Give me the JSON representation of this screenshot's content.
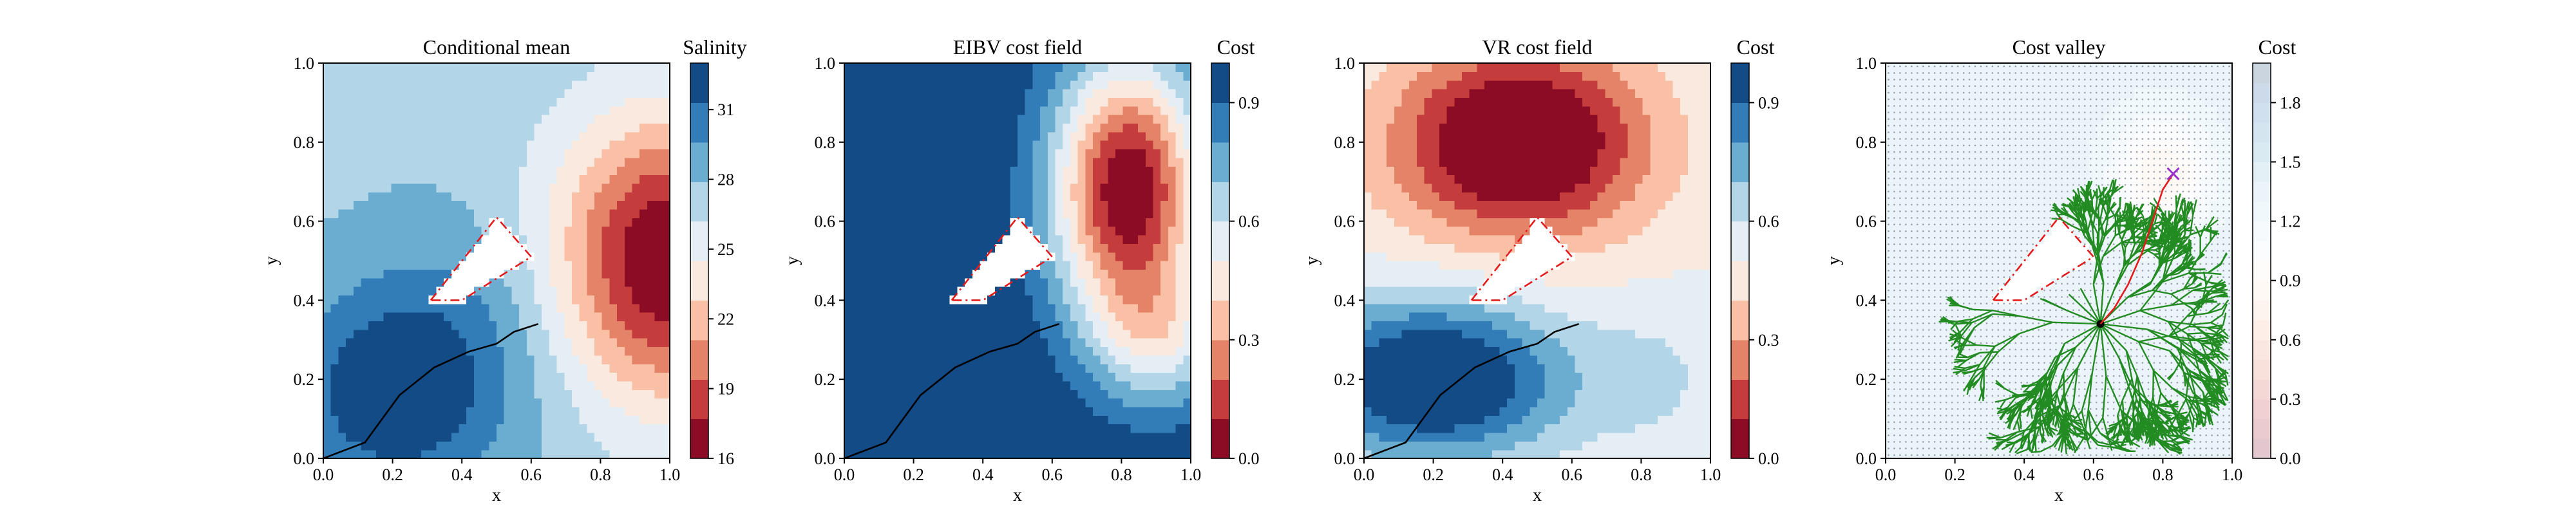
{
  "chart_data": [
    {
      "type": "heatmap",
      "title": "Conditional mean",
      "xlabel": "x",
      "ylabel": "y",
      "xlim": [
        0.0,
        1.0
      ],
      "ylim": [
        0.0,
        1.0
      ],
      "xticks": [
        "0.0",
        "0.2",
        "0.4",
        "0.6",
        "0.8",
        "1.0"
      ],
      "yticks": [
        "0.0",
        "0.2",
        "0.4",
        "0.6",
        "0.8",
        "1.0"
      ],
      "colorbar": {
        "label": "Salinity",
        "range": [
          16,
          33
        ],
        "ticks": [
          "16",
          "19",
          "22",
          "25",
          "28",
          "31"
        ],
        "tick_values": [
          16,
          19,
          22,
          25,
          28,
          31
        ],
        "colormap": "RdBu",
        "levels": 10
      },
      "field": {
        "base": 27.5,
        "blobs": [
          {
            "x": 1.0,
            "y": 0.5,
            "amp": -12,
            "rx": 0.34,
            "ry": 0.36
          },
          {
            "x": 0.2,
            "y": 0.16,
            "amp": 5,
            "rx": 0.3,
            "ry": 0.26
          },
          {
            "x": 0.45,
            "y": 0.35,
            "amp": 2,
            "rx": 0.35,
            "ry": 0.3
          }
        ]
      },
      "obstacle": [
        [
          0.31,
          0.4
        ],
        [
          0.5,
          0.61
        ],
        [
          0.6,
          0.51
        ],
        [
          0.4,
          0.4
        ]
      ],
      "path": [
        [
          0.0,
          0.0
        ],
        [
          0.12,
          0.04
        ],
        [
          0.22,
          0.16
        ],
        [
          0.32,
          0.23
        ],
        [
          0.42,
          0.27
        ],
        [
          0.5,
          0.29
        ],
        [
          0.55,
          0.32
        ],
        [
          0.62,
          0.34
        ]
      ],
      "path_color": "#000000"
    },
    {
      "type": "heatmap",
      "title": "EIBV cost field",
      "xlabel": "x",
      "ylabel": "y",
      "xlim": [
        0.0,
        1.0
      ],
      "ylim": [
        0.0,
        1.0
      ],
      "xticks": [
        "0.0",
        "0.2",
        "0.4",
        "0.6",
        "0.8",
        "1.0"
      ],
      "yticks": [
        "0.0",
        "0.2",
        "0.4",
        "0.6",
        "0.8",
        "1.0"
      ],
      "colorbar": {
        "label": "Cost",
        "range": [
          0.0,
          1.0
        ],
        "ticks": [
          "0.0",
          "0.3",
          "0.6",
          "0.9"
        ],
        "tick_values": [
          0.0,
          0.3,
          0.6,
          0.9
        ],
        "colormap": "RdBu",
        "levels": 10
      },
      "field": {
        "base": 1.0,
        "blobs": [
          {
            "x": 0.82,
            "y": 0.68,
            "amp": -1.0,
            "rx": 0.22,
            "ry": 0.34
          },
          {
            "x": 0.92,
            "y": 0.3,
            "amp": -0.35,
            "rx": 0.2,
            "ry": 0.18
          }
        ]
      },
      "obstacle": [
        [
          0.31,
          0.4
        ],
        [
          0.5,
          0.61
        ],
        [
          0.6,
          0.51
        ],
        [
          0.4,
          0.4
        ]
      ],
      "path": [
        [
          0.0,
          0.0
        ],
        [
          0.12,
          0.04
        ],
        [
          0.22,
          0.16
        ],
        [
          0.32,
          0.23
        ],
        [
          0.42,
          0.27
        ],
        [
          0.5,
          0.29
        ],
        [
          0.55,
          0.32
        ],
        [
          0.62,
          0.34
        ]
      ],
      "path_color": "#000000"
    },
    {
      "type": "heatmap",
      "title": "VR cost field",
      "xlabel": "x",
      "ylabel": "y",
      "xlim": [
        0.0,
        1.0
      ],
      "ylim": [
        0.0,
        1.0
      ],
      "xticks": [
        "0.0",
        "0.2",
        "0.4",
        "0.6",
        "0.8",
        "1.0"
      ],
      "yticks": [
        "0.0",
        "0.2",
        "0.4",
        "0.6",
        "0.8",
        "1.0"
      ],
      "colorbar": {
        "label": "Cost",
        "range": [
          0.0,
          1.0
        ],
        "ticks": [
          "0.0",
          "0.3",
          "0.6",
          "0.9"
        ],
        "tick_values": [
          0.0,
          0.3,
          0.6,
          0.9
        ],
        "colormap": "RdBu",
        "levels": 10
      },
      "field": {
        "base": 0.5,
        "blobs": [
          {
            "x": 0.45,
            "y": 0.8,
            "amp": -0.62,
            "rx": 0.36,
            "ry": 0.24
          },
          {
            "x": 0.2,
            "y": 0.2,
            "amp": 0.6,
            "rx": 0.38,
            "ry": 0.2
          },
          {
            "x": 0.85,
            "y": 0.2,
            "amp": 0.1,
            "rx": 0.2,
            "ry": 0.2
          }
        ]
      },
      "obstacle": [
        [
          0.31,
          0.4
        ],
        [
          0.5,
          0.61
        ],
        [
          0.6,
          0.51
        ],
        [
          0.4,
          0.4
        ]
      ],
      "path": [
        [
          0.0,
          0.0
        ],
        [
          0.12,
          0.04
        ],
        [
          0.22,
          0.16
        ],
        [
          0.32,
          0.23
        ],
        [
          0.42,
          0.27
        ],
        [
          0.5,
          0.29
        ],
        [
          0.55,
          0.32
        ],
        [
          0.62,
          0.34
        ]
      ],
      "path_color": "#000000"
    },
    {
      "type": "heatmap",
      "title": "Cost valley",
      "xlabel": "x",
      "ylabel": "y",
      "xlim": [
        0.0,
        1.0
      ],
      "ylim": [
        0.0,
        1.0
      ],
      "xticks": [
        "0.0",
        "0.2",
        "0.4",
        "0.6",
        "0.8",
        "1.0"
      ],
      "yticks": [
        "0.0",
        "0.2",
        "0.4",
        "0.6",
        "0.8",
        "1.0"
      ],
      "colorbar": {
        "label": "Cost",
        "range": [
          0.0,
          2.0
        ],
        "ticks": [
          "0.0",
          "0.3",
          "0.6",
          "0.9",
          "1.2",
          "1.5",
          "1.8"
        ],
        "tick_values": [
          0.0,
          0.3,
          0.6,
          0.9,
          1.2,
          1.5,
          1.8
        ],
        "colormap": "RdBu-faded",
        "levels": 20
      },
      "field": {
        "base": 1.35,
        "blobs": [
          {
            "x": 0.8,
            "y": 0.72,
            "amp": -0.55,
            "rx": 0.14,
            "ry": 0.14
          }
        ]
      },
      "obstacle": [
        [
          0.31,
          0.4
        ],
        [
          0.5,
          0.61
        ],
        [
          0.6,
          0.51
        ],
        [
          0.4,
          0.4
        ]
      ],
      "tree_root": [
        0.62,
        0.34
      ],
      "tree_color": "#228b22",
      "path": [
        [
          0.62,
          0.34
        ],
        [
          0.66,
          0.38
        ],
        [
          0.7,
          0.44
        ],
        [
          0.74,
          0.52
        ],
        [
          0.77,
          0.6
        ],
        [
          0.8,
          0.68
        ],
        [
          0.83,
          0.72
        ]
      ],
      "path_color": "#e41a1c",
      "target": [
        0.83,
        0.72
      ],
      "target_marker": "x",
      "target_color": "#9932cc"
    }
  ]
}
